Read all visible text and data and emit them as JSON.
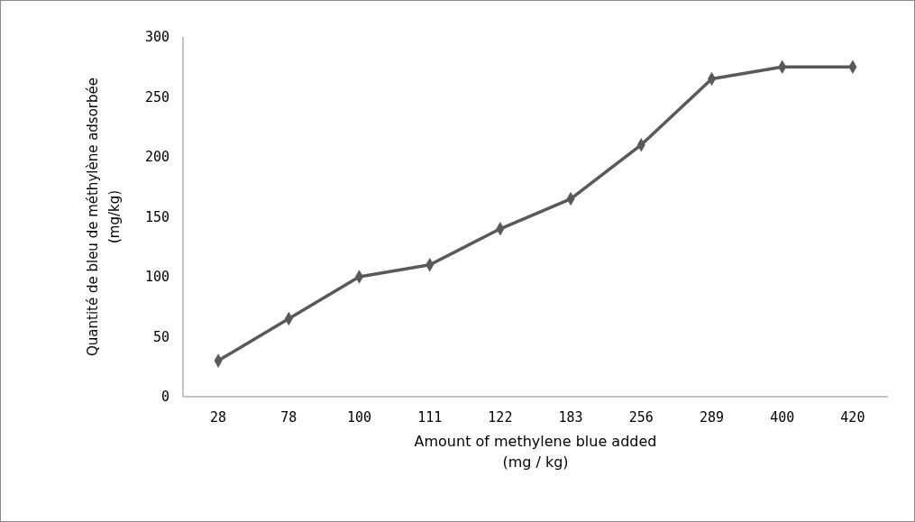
{
  "chart_data": {
    "type": "line",
    "xlabel": "Amount of methylene blue added\n(mg / kg)",
    "ylabel": "Quantité de bleu de méthylène adsorbée\n(mg/kg)",
    "categories": [
      "28",
      "78",
      "100",
      "111",
      "122",
      "183",
      "256",
      "289",
      "400",
      "420"
    ],
    "series": [
      {
        "color": "#595959",
        "values": [
          30,
          65,
          100,
          110,
          140,
          165,
          210,
          265,
          275,
          275
        ]
      }
    ],
    "ylim": [
      0,
      300
    ],
    "yticks": [
      0,
      50,
      100,
      150,
      200,
      250,
      300
    ],
    "grid": false,
    "marker": "diamond",
    "line_style": "solid"
  }
}
